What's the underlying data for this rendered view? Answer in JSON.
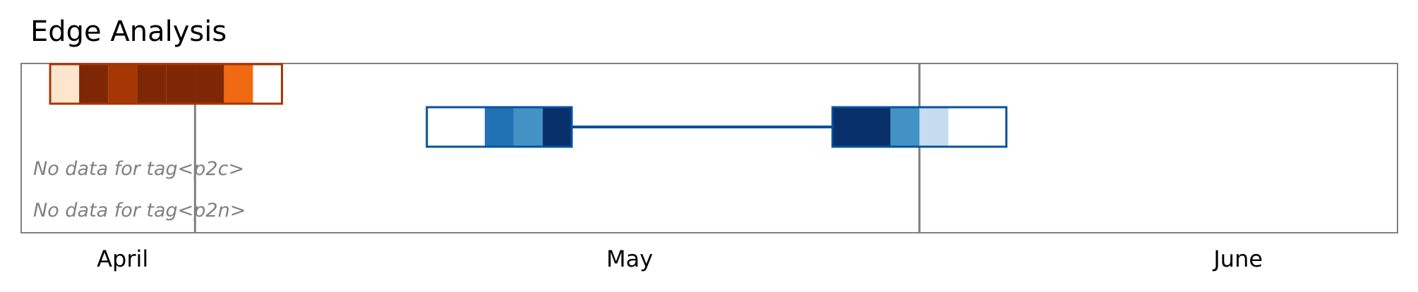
{
  "title": "Edge Analysis",
  "chart_data": {
    "type": "timeline",
    "title": "Edge Analysis",
    "x_unit": "date",
    "x_range": [
      "2024-03-27",
      "2024-06-30"
    ],
    "month_ticks": [
      {
        "label": "April",
        "date": "2024-04-03"
      },
      {
        "label": "May",
        "date": "2024-05-08"
      },
      {
        "label": "June",
        "date": "2024-06-19"
      }
    ],
    "vertical_lines": [
      "2024-04-08",
      "2024-05-28"
    ],
    "rows": [
      {
        "key": "row1",
        "outline": "#a63603",
        "cells": [
          {
            "start": "2024-03-29",
            "end": "2024-03-31",
            "color": "#fee6ce"
          },
          {
            "start": "2024-03-31",
            "end": "2024-04-02",
            "color": "#7f2704"
          },
          {
            "start": "2024-04-02",
            "end": "2024-04-04",
            "color": "#a63603"
          },
          {
            "start": "2024-04-04",
            "end": "2024-04-06",
            "color": "#7f2704"
          },
          {
            "start": "2024-04-06",
            "end": "2024-04-08",
            "color": "#7f2704"
          },
          {
            "start": "2024-04-08",
            "end": "2024-04-10",
            "color": "#7f2704"
          },
          {
            "start": "2024-04-10",
            "end": "2024-04-12",
            "color": "#f16913"
          },
          {
            "start": "2024-04-12",
            "end": "2024-04-14",
            "color": "#ffffff"
          }
        ],
        "connectors": []
      },
      {
        "key": "row2",
        "outline": "#08519c",
        "cells": [
          {
            "start": "2024-04-24",
            "end": "2024-04-28",
            "color": "#ffffff"
          },
          {
            "start": "2024-04-28",
            "end": "2024-04-30",
            "color": "#2171b5"
          },
          {
            "start": "2024-04-30",
            "end": "2024-05-02",
            "color": "#4292c6"
          },
          {
            "start": "2024-05-02",
            "end": "2024-05-04",
            "color": "#08306b"
          },
          {
            "start": "2024-05-22",
            "end": "2024-05-26",
            "color": "#08306b"
          },
          {
            "start": "2024-05-26",
            "end": "2024-05-28",
            "color": "#4292c6"
          },
          {
            "start": "2024-05-28",
            "end": "2024-05-30",
            "color": "#c6dbef"
          },
          {
            "start": "2024-05-30",
            "end": "2024-06-03",
            "color": "#ffffff"
          }
        ],
        "connectors": [
          {
            "start": "2024-05-04",
            "end": "2024-05-22",
            "color": "#08519c"
          }
        ]
      }
    ],
    "empty_rows": [
      {
        "key": "p2c",
        "text": "No data for tag<p2c>"
      },
      {
        "key": "p2n",
        "text": "No data for tag<p2n>"
      }
    ]
  }
}
